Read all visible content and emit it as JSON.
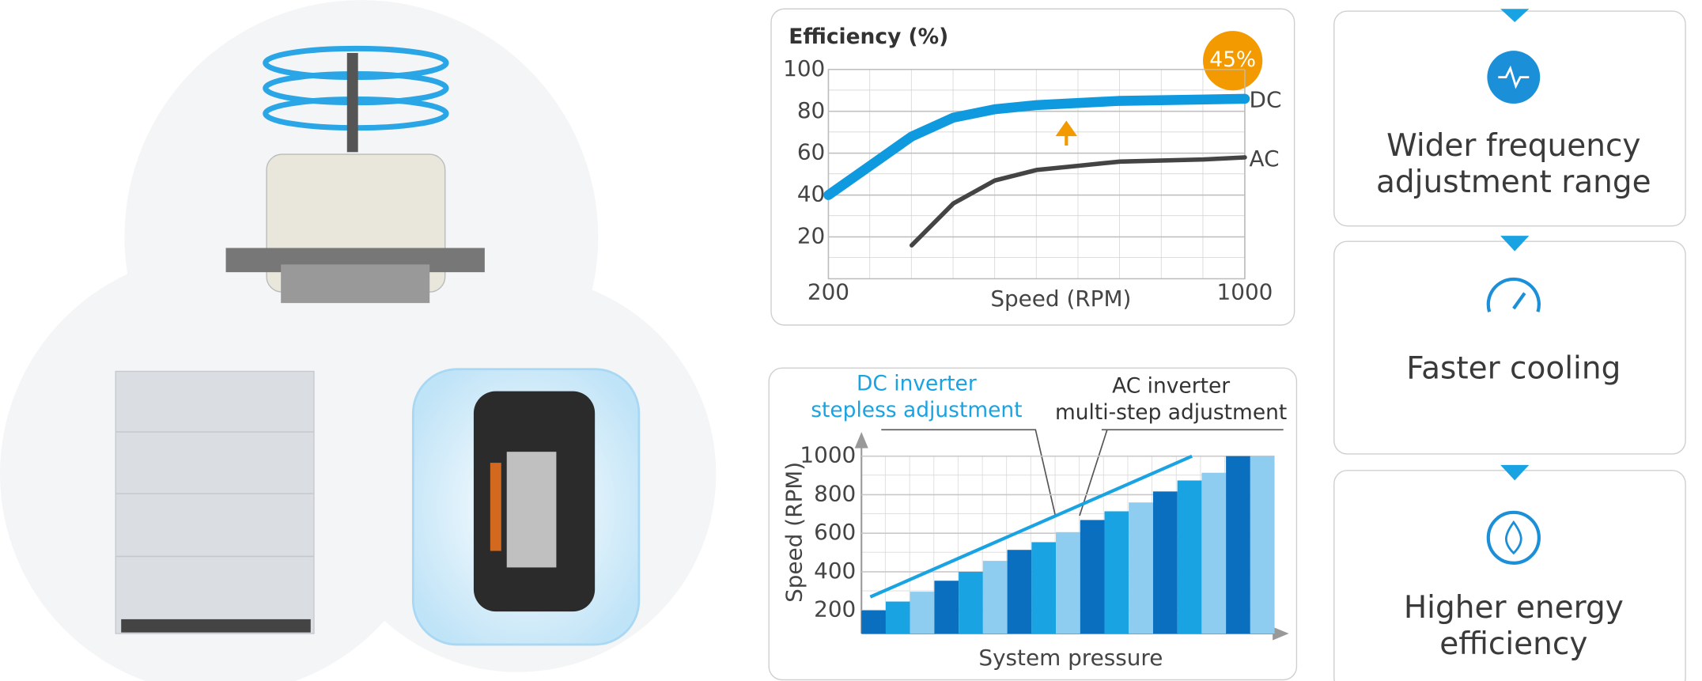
{
  "chart_data": [
    {
      "type": "line",
      "title": "Efficiency (%)",
      "x_label": "Speed (RPM)",
      "annotation": "45%",
      "xlim": [
        200,
        1000
      ],
      "xticks": [
        200,
        1000
      ],
      "ylim": [
        0,
        100
      ],
      "yticks": [
        20,
        40,
        60,
        80,
        100
      ],
      "grid": true,
      "series": [
        {
          "name": "DC",
          "color": "#0f9ae0",
          "x": [
            200,
            280,
            360,
            440,
            520,
            600,
            760,
            1000
          ],
          "values": [
            40,
            54,
            68,
            77,
            81,
            83,
            85,
            86
          ]
        },
        {
          "name": "AC",
          "color": "#444444",
          "x": [
            360,
            440,
            520,
            600,
            680,
            760,
            920,
            1000
          ],
          "values": [
            16,
            36,
            47,
            52,
            54,
            56,
            57,
            58
          ]
        }
      ]
    },
    {
      "type": "bar",
      "x_label": "System pressure",
      "y_label": "Speed (RPM)",
      "ylim": [
        80,
        1000
      ],
      "yticks": [
        200,
        400,
        600,
        800,
        1000
      ],
      "grid": true,
      "values": [
        200,
        246,
        297,
        354,
        400,
        457,
        514,
        554,
        606,
        669,
        714,
        760,
        817,
        874,
        914,
        1000,
        1000
      ],
      "colors": [
        "#0b6fc0",
        "#19a3e3",
        "#8fcdf0",
        "#0b6fc0",
        "#19a3e3",
        "#8fcdf0",
        "#0b6fc0",
        "#19a3e3",
        "#8fcdf0",
        "#0b6fc0",
        "#19a3e3",
        "#8fcdf0",
        "#0b6fc0",
        "#19a3e3",
        "#8fcdf0",
        "#0b6fc0",
        "#8fcdf0"
      ],
      "trend": {
        "color": "#19a3e3",
        "values": [
          270,
          1000
        ]
      },
      "annotations": [
        {
          "lines": [
            "DC inverter",
            "stepless adjustment"
          ],
          "color": "#19a3e3"
        },
        {
          "lines": [
            "AC inverter",
            "multi-step adjustment"
          ],
          "color": "#333333"
        }
      ]
    }
  ],
  "features": [
    {
      "lines": [
        "Wider frequency",
        "adjustment range"
      ]
    },
    {
      "lines": [
        "Faster cooling"
      ]
    },
    {
      "lines": [
        "Higher energy",
        "efficiency"
      ]
    }
  ]
}
